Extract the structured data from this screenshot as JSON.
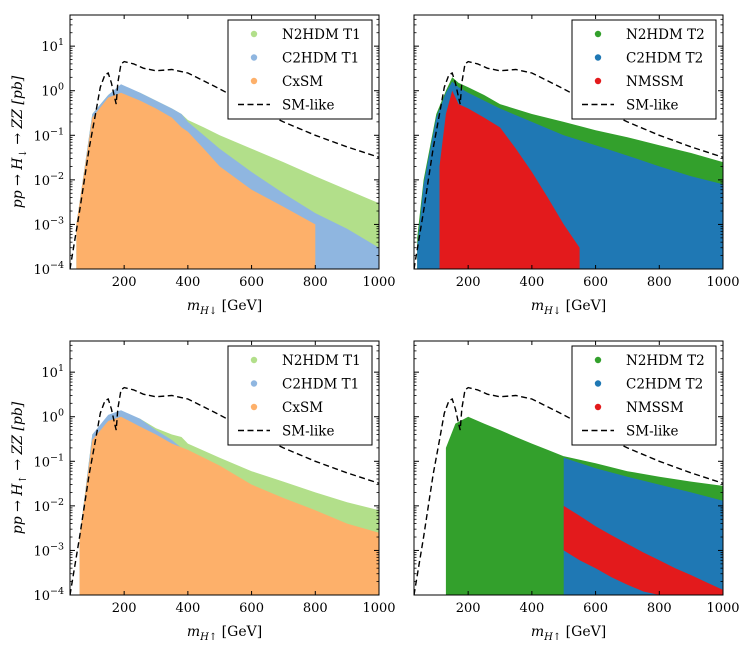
{
  "chart_data": [
    {
      "type": "scatter",
      "panel": "top-left",
      "xlabel": "m_{H↓} [GeV]",
      "xlabel_main": "m",
      "xlabel_sub": "H↓",
      "xlabel_unit": " [GeV]",
      "ylabel": "pp → H↓ → ZZ [pb]",
      "ylabel_parts": {
        "pre": "pp → H",
        "sub": "↓",
        "post": " → ZZ [pb]"
      },
      "ylog": true,
      "xlim": [
        30,
        1000
      ],
      "ylim": [
        0.0001,
        50
      ],
      "xticks": [
        200,
        400,
        600,
        800,
        1000
      ],
      "yticks": [
        {
          "value": 0.0001,
          "base": "10",
          "exp": "−4"
        },
        {
          "value": 0.001,
          "base": "10",
          "exp": "−3"
        },
        {
          "value": 0.01,
          "base": "10",
          "exp": "−2"
        },
        {
          "value": 0.1,
          "base": "10",
          "exp": "−1"
        },
        {
          "value": 1,
          "base": "10",
          "exp": "0"
        },
        {
          "value": 10,
          "base": "10",
          "exp": "1"
        }
      ],
      "show_ytick_labels": true,
      "legend_position": "top-right",
      "series": [
        {
          "name": "N2HDM T1",
          "kind": "region",
          "color": "#b2df8a",
          "x": [
            50,
            100,
            150,
            190,
            250,
            300,
            350,
            380,
            400,
            450,
            500,
            600,
            700,
            800,
            900,
            1000
          ],
          "upper": [
            0.001,
            0.3,
            0.8,
            1.3,
            0.9,
            0.6,
            0.4,
            0.3,
            0.22,
            0.15,
            0.1,
            0.05,
            0.025,
            0.012,
            0.006,
            0.003
          ],
          "lower": [
            0.0001,
            0.0001,
            0.0001,
            0.0001,
            0.0001,
            0.0001,
            0.0001,
            0.0001,
            0.0001,
            0.0001,
            0.0001,
            0.0001,
            0.0001,
            0.0001,
            0.0001,
            0.0001
          ]
        },
        {
          "name": "C2HDM T1",
          "kind": "region",
          "color": "#8fb6e0",
          "x": [
            50,
            100,
            150,
            190,
            250,
            300,
            350,
            380,
            400,
            450,
            500,
            600,
            700,
            800,
            900,
            1000
          ],
          "upper": [
            0.001,
            0.3,
            0.8,
            1.4,
            0.9,
            0.6,
            0.4,
            0.3,
            0.2,
            0.1,
            0.05,
            0.015,
            0.005,
            0.0018,
            0.0008,
            0.0003
          ],
          "lower": [
            0.0001,
            0.0001,
            0.0001,
            0.0001,
            0.0001,
            0.0001,
            0.0001,
            0.0001,
            0.0001,
            0.0001,
            0.0001,
            0.0001,
            0.0001,
            0.0001,
            0.0001,
            0.0001
          ]
        },
        {
          "name": "CxSM",
          "kind": "region",
          "color": "#fdb06a",
          "x": [
            50,
            100,
            150,
            190,
            250,
            300,
            350,
            380,
            400,
            450,
            500,
            600,
            700,
            800
          ],
          "upper": [
            0.001,
            0.25,
            0.7,
            0.9,
            0.6,
            0.4,
            0.25,
            0.15,
            0.12,
            0.05,
            0.02,
            0.006,
            0.0025,
            0.001
          ],
          "lower": [
            0.0001,
            0.0001,
            0.0001,
            0.0001,
            0.0001,
            0.0001,
            0.0001,
            0.0001,
            0.0001,
            0.0001,
            0.0001,
            0.0001,
            0.0001,
            0.0001
          ]
        },
        {
          "name": "SM-like",
          "kind": "dashed",
          "color": "#000000",
          "x": [
            30,
            60,
            90,
            110,
            125,
            140,
            150,
            160,
            170,
            175,
            180,
            190,
            200,
            230,
            260,
            300,
            350,
            400,
            500,
            600,
            700,
            800,
            900,
            1000
          ],
          "y": [
            0.0001,
            0.002,
            0.05,
            0.3,
            1.2,
            2.3,
            2.5,
            1.5,
            0.7,
            0.5,
            1.5,
            4.0,
            4.5,
            4.0,
            3.2,
            2.8,
            3.0,
            2.5,
            1.1,
            0.45,
            0.2,
            0.1,
            0.055,
            0.032
          ]
        }
      ]
    },
    {
      "type": "scatter",
      "panel": "top-right",
      "xlabel": "m_{H↓} [GeV]",
      "xlabel_main": "m",
      "xlabel_sub": "H↓",
      "xlabel_unit": " [GeV]",
      "ylabel": "",
      "ylog": true,
      "xlim": [
        30,
        1000
      ],
      "ylim": [
        0.0001,
        50
      ],
      "xticks": [
        200,
        400,
        600,
        800,
        1000
      ],
      "show_ytick_labels": false,
      "legend_position": "top-right",
      "series": [
        {
          "name": "N2HDM T2",
          "kind": "region",
          "color": "#33a02c",
          "x": [
            40,
            60,
            100,
            130,
            150,
            170,
            200,
            250,
            300,
            400,
            500,
            600,
            700,
            800,
            900,
            1000
          ],
          "upper": [
            0.0005,
            0.01,
            0.3,
            1.0,
            2.0,
            1.5,
            1.2,
            0.8,
            0.5,
            0.3,
            0.2,
            0.13,
            0.09,
            0.06,
            0.04,
            0.025
          ],
          "lower": [
            0.0001,
            0.0001,
            0.0001,
            0.0001,
            0.0001,
            0.0001,
            0.0001,
            0.0001,
            0.0001,
            0.0001,
            0.0001,
            0.0001,
            0.0001,
            0.0001,
            0.0001,
            0.0001
          ]
        },
        {
          "name": "C2HDM T2",
          "kind": "region",
          "color": "#1f78b4",
          "x": [
            40,
            60,
            100,
            130,
            150,
            170,
            200,
            250,
            300,
            400,
            500,
            600,
            700,
            800,
            900,
            1000
          ],
          "upper": [
            0.0003,
            0.008,
            0.25,
            0.9,
            1.6,
            1.2,
            0.9,
            0.6,
            0.4,
            0.2,
            0.1,
            0.06,
            0.035,
            0.02,
            0.012,
            0.008
          ],
          "lower": [
            0.0001,
            0.0001,
            0.0001,
            0.0001,
            0.0001,
            0.0001,
            0.0001,
            0.0001,
            0.0001,
            0.0001,
            0.0001,
            0.0001,
            0.0001,
            0.0001,
            0.0001,
            0.0001
          ]
        },
        {
          "name": "NMSSM",
          "kind": "region",
          "color": "#e31a1c",
          "x": [
            110,
            130,
            150,
            170,
            200,
            250,
            300,
            350,
            400,
            450,
            500,
            550
          ],
          "upper": [
            0.02,
            0.3,
            1.0,
            0.5,
            0.4,
            0.25,
            0.15,
            0.05,
            0.015,
            0.004,
            0.001,
            0.0003
          ],
          "lower": [
            0.0001,
            0.0001,
            0.0001,
            0.0001,
            0.0001,
            0.0001,
            0.0001,
            0.0001,
            0.0001,
            0.0001,
            0.0001,
            0.0001
          ]
        },
        {
          "name": "SM-like",
          "kind": "dashed",
          "color": "#000000",
          "x": [
            30,
            60,
            90,
            110,
            125,
            140,
            150,
            160,
            170,
            175,
            180,
            190,
            200,
            230,
            260,
            300,
            350,
            400,
            500,
            600,
            700,
            800,
            900,
            1000
          ],
          "y": [
            0.0001,
            0.002,
            0.05,
            0.3,
            1.2,
            2.3,
            2.5,
            1.5,
            0.7,
            0.5,
            1.5,
            4.0,
            4.5,
            4.0,
            3.2,
            2.8,
            3.0,
            2.5,
            1.1,
            0.45,
            0.2,
            0.1,
            0.055,
            0.032
          ]
        }
      ]
    },
    {
      "type": "scatter",
      "panel": "bottom-left",
      "xlabel": "m_{H↑} [GeV]",
      "xlabel_main": "m",
      "xlabel_sub": "H↑",
      "xlabel_unit": " [GeV]",
      "ylabel": "pp → H↑ → ZZ [pb]",
      "ylabel_parts": {
        "pre": "pp → H",
        "sub": "↑",
        "post": " → ZZ [pb]"
      },
      "ylog": true,
      "xlim": [
        30,
        1000
      ],
      "ylim": [
        0.0001,
        50
      ],
      "xticks": [
        200,
        400,
        600,
        800,
        1000
      ],
      "yticks": [
        {
          "value": 0.0001,
          "base": "10",
          "exp": "−4"
        },
        {
          "value": 0.001,
          "base": "10",
          "exp": "−3"
        },
        {
          "value": 0.01,
          "base": "10",
          "exp": "−2"
        },
        {
          "value": 0.1,
          "base": "10",
          "exp": "−1"
        },
        {
          "value": 1,
          "base": "10",
          "exp": "0"
        },
        {
          "value": 10,
          "base": "10",
          "exp": "1"
        }
      ],
      "show_ytick_labels": true,
      "legend_position": "top-right",
      "series": [
        {
          "name": "N2HDM T1",
          "kind": "region",
          "color": "#b2df8a",
          "x": [
            60,
            100,
            150,
            190,
            250,
            300,
            350,
            380,
            400,
            500,
            600,
            700,
            800,
            900,
            1000
          ],
          "upper": [
            0.002,
            0.4,
            1.0,
            1.3,
            0.9,
            0.55,
            0.4,
            0.35,
            0.25,
            0.12,
            0.06,
            0.035,
            0.02,
            0.012,
            0.008
          ],
          "lower": [
            0.0001,
            0.0001,
            0.0001,
            0.0001,
            0.0001,
            0.0001,
            0.0001,
            0.0001,
            0.0001,
            0.0001,
            0.0001,
            0.0001,
            0.0001,
            0.0001,
            0.0001
          ]
        },
        {
          "name": "C2HDM T1",
          "kind": "region",
          "color": "#8fb6e0",
          "x": [
            60,
            100,
            150,
            190,
            250,
            300,
            350,
            380
          ],
          "upper": [
            0.002,
            0.4,
            1.1,
            1.4,
            0.9,
            0.5,
            0.3,
            0.2
          ],
          "lower": [
            0.0001,
            0.0001,
            0.0001,
            0.0001,
            0.0001,
            0.0001,
            0.0001,
            0.0001
          ]
        },
        {
          "name": "CxSM",
          "kind": "region",
          "color": "#fdb06a",
          "x": [
            60,
            100,
            150,
            190,
            250,
            300,
            350,
            400,
            500,
            600,
            700,
            800,
            900,
            1000
          ],
          "upper": [
            0.002,
            0.3,
            0.8,
            1.0,
            0.6,
            0.4,
            0.25,
            0.18,
            0.08,
            0.03,
            0.015,
            0.008,
            0.004,
            0.0025
          ],
          "lower": [
            0.0001,
            0.0001,
            0.0001,
            0.0001,
            0.0001,
            0.0001,
            0.0001,
            0.0001,
            0.0001,
            0.0001,
            0.0001,
            0.0001,
            0.0001,
            0.0001
          ]
        },
        {
          "name": "SM-like",
          "kind": "dashed",
          "color": "#000000",
          "x": [
            30,
            60,
            90,
            110,
            125,
            140,
            150,
            160,
            170,
            175,
            180,
            190,
            200,
            230,
            260,
            300,
            350,
            400,
            500,
            600,
            700,
            800,
            900,
            1000
          ],
          "y": [
            0.0001,
            0.002,
            0.05,
            0.3,
            1.2,
            2.3,
            2.5,
            1.5,
            0.7,
            0.5,
            1.5,
            4.0,
            4.5,
            4.0,
            3.2,
            2.8,
            3.0,
            2.5,
            1.1,
            0.45,
            0.2,
            0.1,
            0.055,
            0.032
          ]
        }
      ]
    },
    {
      "type": "scatter",
      "panel": "bottom-right",
      "xlabel": "m_{H↑} [GeV]",
      "xlabel_main": "m",
      "xlabel_sub": "H↑",
      "xlabel_unit": " [GeV]",
      "ylabel": "",
      "ylog": true,
      "xlim": [
        30,
        1000
      ],
      "ylim": [
        0.0001,
        50
      ],
      "xticks": [
        200,
        400,
        600,
        800,
        1000
      ],
      "show_ytick_labels": false,
      "legend_position": "top-right",
      "series": [
        {
          "name": "N2HDM T2",
          "kind": "region",
          "color": "#33a02c",
          "x": [
            130,
            160,
            200,
            250,
            300,
            350,
            400,
            450,
            500,
            501,
            600,
            700,
            800,
            900,
            1000
          ],
          "upper": [
            0.2,
            0.7,
            1.0,
            0.7,
            0.5,
            0.35,
            0.25,
            0.18,
            0.13,
            0.13,
            0.09,
            0.06,
            0.045,
            0.035,
            0.028
          ],
          "lower": [
            0.0001,
            0.0001,
            0.0001,
            0.0001,
            0.0001,
            0.0001,
            0.0001,
            0.0001,
            0.0001,
            0.0001,
            0.0001,
            0.0001,
            0.0001,
            0.0001,
            0.0001
          ]
        },
        {
          "name": "C2HDM T2",
          "kind": "region",
          "color": "#1f78b4",
          "x": [
            500,
            600,
            700,
            800,
            900,
            1000
          ],
          "upper": [
            0.12,
            0.07,
            0.045,
            0.03,
            0.02,
            0.013
          ],
          "lower": [
            0.0001,
            0.0001,
            0.0001,
            0.0001,
            0.0001,
            0.0001
          ]
        },
        {
          "name": "NMSSM",
          "kind": "region",
          "color": "#e31a1c",
          "x": [
            500,
            550,
            600,
            650,
            700,
            750,
            800,
            850,
            900,
            950,
            1000
          ],
          "upper": [
            0.01,
            0.006,
            0.0035,
            0.0022,
            0.0014,
            0.0009,
            0.0006,
            0.0004,
            0.00028,
            0.00019,
            0.00013
          ],
          "lower": [
            0.001,
            0.0006,
            0.0004,
            0.00025,
            0.00017,
            0.00012,
            0.0001,
            0.0001,
            0.0001,
            0.0001,
            0.0001
          ]
        },
        {
          "name": "SM-like",
          "kind": "dashed",
          "color": "#000000",
          "x": [
            30,
            60,
            90,
            110,
            125,
            140,
            150,
            160,
            170,
            175,
            180,
            190,
            200,
            230,
            260,
            300,
            350,
            400,
            500,
            600,
            700,
            800,
            900,
            1000
          ],
          "y": [
            0.0001,
            0.002,
            0.05,
            0.3,
            1.2,
            2.3,
            2.5,
            1.5,
            0.7,
            0.5,
            1.5,
            4.0,
            4.5,
            4.0,
            3.2,
            2.8,
            3.0,
            2.5,
            1.1,
            0.45,
            0.2,
            0.1,
            0.055,
            0.032
          ]
        }
      ]
    }
  ]
}
